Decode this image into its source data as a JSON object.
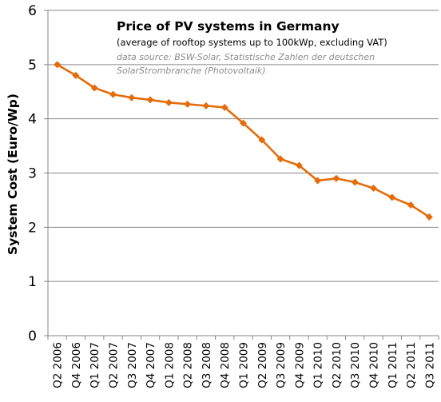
{
  "colors": {
    "series": "#e46c0a",
    "grid": "#868686",
    "axis": "#868686",
    "source_text": "#8c8c8c"
  },
  "chart_data": {
    "type": "line",
    "title": "Price of PV systems in Germany",
    "subtitle": "(average of rooftop systems up to 100kWp,  excluding VAT)",
    "source": "data source: BSW-Solar, Statistische Zahlen der deutschen SolarStrombranche (Photovoltaik)",
    "xlabel": "",
    "ylabel": "System Cost (Euro/Wp)",
    "ylim": [
      0,
      6
    ],
    "yticks": [
      0,
      1,
      2,
      3,
      4,
      5,
      6
    ],
    "grid": true,
    "legend": "none",
    "categories": [
      "Q2 2006",
      "Q4 2006",
      "Q1 2007",
      "Q2 2007",
      "Q3 2007",
      "Q4 2007",
      "Q1 2008",
      "Q2 2008",
      "Q3 2008",
      "Q4 2008",
      "Q1 2009",
      "Q2 2009",
      "Q3 2009",
      "Q4 2009",
      "Q1 2010",
      "Q2 2010",
      "Q3 2010",
      "Q4 2010",
      "Q1 2011",
      "Q2 2011",
      "Q3 2011"
    ],
    "series": [
      {
        "values": [
          5.0,
          4.8,
          4.57,
          4.45,
          4.39,
          4.35,
          4.3,
          4.27,
          4.24,
          4.21,
          3.92,
          3.61,
          3.26,
          3.14,
          2.86,
          2.9,
          2.83,
          2.72,
          2.55,
          2.41,
          2.19
        ]
      }
    ]
  }
}
